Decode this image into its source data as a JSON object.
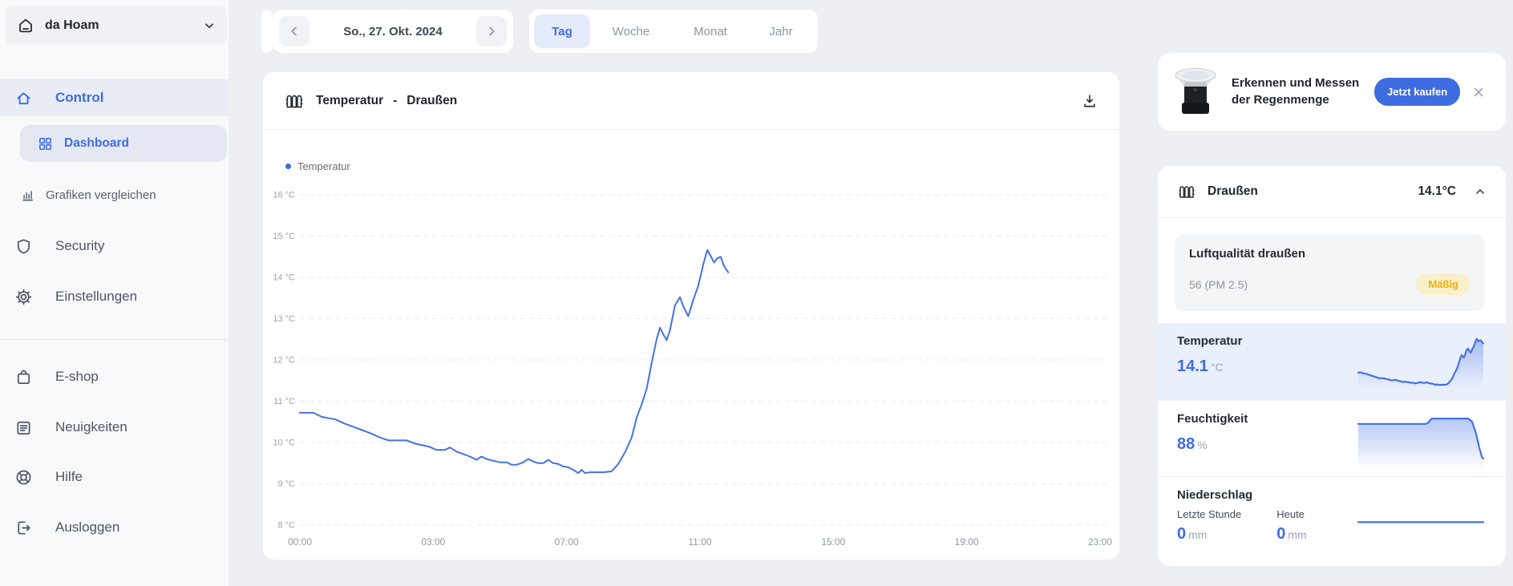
{
  "sidebar": {
    "workspace": {
      "name": "da Hoam"
    },
    "nav": [
      {
        "label": "Control"
      },
      {
        "label": "Dashboard"
      },
      {
        "label": "Grafiken vergleichen"
      },
      {
        "label": "Security"
      },
      {
        "label": "Einstellungen"
      },
      {
        "label": "E-shop"
      },
      {
        "label": "Neuigkeiten"
      },
      {
        "label": "Hilfe"
      },
      {
        "label": "Ausloggen"
      }
    ]
  },
  "topbar": {
    "date_label": "So., 27. Okt. 2024",
    "tabs": [
      {
        "label": "Tag",
        "active": true
      },
      {
        "label": "Woche",
        "active": false
      },
      {
        "label": "Monat",
        "active": false
      },
      {
        "label": "Jahr",
        "active": false
      }
    ]
  },
  "chart_card": {
    "metric": "Temperatur",
    "separator": "-",
    "location": "Draußen",
    "legend": "Temperatur"
  },
  "chart_data": {
    "main": {
      "type": "line",
      "title": "Temperatur - Draußen",
      "x_ticks": {
        "hours": [
          0,
          3,
          7,
          11,
          15,
          19,
          23
        ],
        "labels": [
          "00:00",
          "03:00",
          "07:00",
          "11:00",
          "15:00",
          "19:00",
          "23:00"
        ]
      },
      "y_ticks": [
        8,
        9,
        10,
        11,
        12,
        13,
        14,
        15,
        16
      ],
      "y_unit": "°C",
      "ylim": [
        8,
        16
      ],
      "grid": "dashed-horizontal",
      "legend_position": "top-left",
      "series": [
        {
          "name": "Temperatur",
          "color": "#4472e2",
          "points": [
            [
              0,
              10.72
            ],
            [
              0.3,
              10.72
            ],
            [
              0.5,
              10.62
            ],
            [
              0.8,
              10.56
            ],
            [
              1,
              10.46
            ],
            [
              1.2,
              10.38
            ],
            [
              1.4,
              10.3
            ],
            [
              1.6,
              10.22
            ],
            [
              1.8,
              10.12
            ],
            [
              2,
              10.05
            ],
            [
              2.4,
              10.05
            ],
            [
              2.6,
              9.97
            ],
            [
              2.9,
              9.9
            ],
            [
              3.1,
              9.82
            ],
            [
              3.35,
              9.82
            ],
            [
              3.5,
              9.88
            ],
            [
              3.7,
              9.78
            ],
            [
              3.9,
              9.72
            ],
            [
              4.1,
              9.66
            ],
            [
              4.3,
              9.58
            ],
            [
              4.45,
              9.66
            ],
            [
              4.6,
              9.6
            ],
            [
              4.8,
              9.56
            ],
            [
              5,
              9.52
            ],
            [
              5.2,
              9.52
            ],
            [
              5.35,
              9.46
            ],
            [
              5.5,
              9.46
            ],
            [
              5.7,
              9.52
            ],
            [
              5.85,
              9.6
            ],
            [
              6,
              9.54
            ],
            [
              6.15,
              9.5
            ],
            [
              6.3,
              9.5
            ],
            [
              6.45,
              9.58
            ],
            [
              6.6,
              9.5
            ],
            [
              6.75,
              9.48
            ],
            [
              6.9,
              9.42
            ],
            [
              7.05,
              9.4
            ],
            [
              7.2,
              9.34
            ],
            [
              7.35,
              9.26
            ],
            [
              7.45,
              9.34
            ],
            [
              7.55,
              9.26
            ],
            [
              7.7,
              9.28
            ],
            [
              8.1,
              9.28
            ],
            [
              8.35,
              9.3
            ],
            [
              8.55,
              9.48
            ],
            [
              8.75,
              9.76
            ],
            [
              8.95,
              10.12
            ],
            [
              9.1,
              10.6
            ],
            [
              9.25,
              10.92
            ],
            [
              9.4,
              11.3
            ],
            [
              9.55,
              11.92
            ],
            [
              9.7,
              12.5
            ],
            [
              9.8,
              12.78
            ],
            [
              9.9,
              12.62
            ],
            [
              10,
              12.48
            ],
            [
              10.1,
              12.72
            ],
            [
              10.25,
              13.32
            ],
            [
              10.4,
              13.52
            ],
            [
              10.5,
              13.3
            ],
            [
              10.65,
              13.06
            ],
            [
              10.8,
              13.46
            ],
            [
              10.95,
              13.8
            ],
            [
              11.1,
              14.32
            ],
            [
              11.22,
              14.66
            ],
            [
              11.32,
              14.52
            ],
            [
              11.42,
              14.36
            ],
            [
              11.52,
              14.46
            ],
            [
              11.62,
              14.5
            ],
            [
              11.72,
              14.28
            ],
            [
              11.85,
              14.12
            ]
          ]
        }
      ]
    },
    "sparklines": {
      "temperatur": {
        "type": "line",
        "source": "main",
        "ylim": [
          9,
          15.2
        ],
        "fill": true
      },
      "feuchtigkeit": {
        "type": "line",
        "ylim": [
          52,
          104
        ],
        "fill": true,
        "points": [
          [
            0,
            93
          ],
          [
            35,
            93
          ],
          [
            54,
            93
          ],
          [
            56,
            94
          ],
          [
            57,
            96
          ],
          [
            59,
            98
          ],
          [
            75,
            98
          ],
          [
            88,
            98
          ],
          [
            91,
            95
          ],
          [
            94,
            85
          ],
          [
            97,
            70
          ],
          [
            99,
            62
          ],
          [
            100,
            61
          ]
        ]
      },
      "niederschlag": {
        "type": "line",
        "ylim": [
          -0.5,
          0.75
        ],
        "fill": false,
        "points": [
          [
            0,
            0
          ],
          [
            100,
            0
          ]
        ]
      }
    }
  },
  "right_panel": {
    "promo": {
      "title": "Erkennen und Messen der Regenmenge",
      "cta": "Jetzt kaufen"
    },
    "station": {
      "name": "Draußen",
      "current": "14.1°C"
    },
    "air_quality": {
      "title": "Luftqualität draußen",
      "value": "56 (PM 2.5)",
      "badge": "Mäßig",
      "badge_color": "#eab10b",
      "badge_bg": "#f9efc9"
    },
    "temperature": {
      "label": "Temperatur",
      "value": "14.1",
      "unit": "°C"
    },
    "humidity": {
      "label": "Feuchtigkeit",
      "value": "88",
      "unit": "%"
    },
    "precipitation": {
      "label": "Niederschlag",
      "col1_label": "Letzte Stunde",
      "col1_value": "0",
      "col1_unit": "mm",
      "col2_label": "Heute",
      "col2_value": "0",
      "col2_unit": "mm"
    },
    "accent_color": "#3f6ce0"
  }
}
